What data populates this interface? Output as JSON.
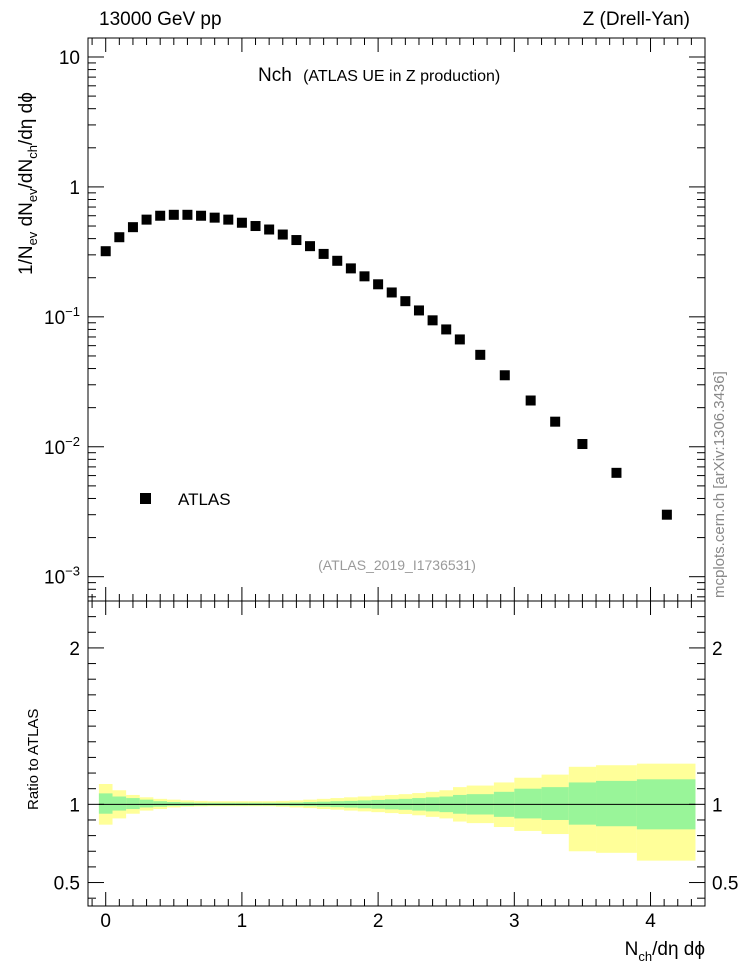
{
  "header": {
    "left": "13000 GeV pp",
    "right": "Z (Drell-Yan)"
  },
  "plot_title": {
    "main": "Nch",
    "sub": "(ATLAS UE in Z production)"
  },
  "analysis_id": "(ATLAS_2019_I1736531)",
  "side_label": "mcplots.cern.ch [arXiv:1306.3436]",
  "y_axis_label": {
    "base": "1/N",
    "sub1": "ev",
    "mid1": " dN",
    "sub2": "ev",
    "mid2": "/dN",
    "sub3": "ch",
    "tail": "/dη dϕ"
  },
  "x_axis_label": {
    "base": "N",
    "sub": "ch",
    "tail": "/dη dϕ"
  },
  "ratio_axis_label": "Ratio to ATLAS",
  "legend": {
    "entries": [
      "ATLAS"
    ]
  },
  "colors": {
    "band_inner": "#99f599",
    "band_outer": "#ffff99",
    "marker": "#000000"
  },
  "chart_data": [
    {
      "type": "scatter",
      "name": "main",
      "yscale": "log",
      "xlim": [
        -0.13,
        4.4
      ],
      "ylim": [
        0.00065,
        14
      ],
      "x_ticks": [
        "0",
        "1",
        "2",
        "3",
        "4"
      ],
      "y_ticks": [
        {
          "value": 10,
          "label": "10",
          "exp": ""
        },
        {
          "value": 1,
          "label": "1",
          "exp": ""
        },
        {
          "value": 0.1,
          "label": "10",
          "exp": "−1"
        },
        {
          "value": 0.01,
          "label": "10",
          "exp": "−2"
        },
        {
          "value": 0.001,
          "label": "10",
          "exp": "−3"
        }
      ],
      "series": [
        {
          "name": "ATLAS",
          "x": [
            0.0,
            0.1,
            0.2,
            0.3,
            0.4,
            0.5,
            0.6,
            0.7,
            0.8,
            0.9,
            1.0,
            1.1,
            1.2,
            1.3,
            1.4,
            1.5,
            1.6,
            1.7,
            1.8,
            1.9,
            2.0,
            2.1,
            2.2,
            2.3,
            2.4,
            2.5,
            2.6,
            2.75,
            2.93,
            3.12,
            3.3,
            3.5,
            3.75,
            4.12
          ],
          "y": [
            0.32,
            0.41,
            0.49,
            0.56,
            0.6,
            0.61,
            0.61,
            0.6,
            0.58,
            0.56,
            0.53,
            0.5,
            0.47,
            0.43,
            0.39,
            0.35,
            0.305,
            0.27,
            0.236,
            0.205,
            0.178,
            0.154,
            0.132,
            0.112,
            0.094,
            0.08,
            0.067,
            0.051,
            0.0355,
            0.0227,
            0.0156,
            0.0105,
            0.0063,
            0.003
          ]
        }
      ]
    },
    {
      "type": "area",
      "name": "ratio",
      "xlabel": "",
      "ylabel": "Ratio to ATLAS",
      "xlim": [
        -0.13,
        4.4
      ],
      "ylim": [
        0.35,
        2.3
      ],
      "y_ticks": [
        "0.5",
        "1",
        "2"
      ],
      "reference": 1,
      "bins": [
        {
          "lo": -0.05,
          "hi": 0.05,
          "inner": [
            0.94,
            1.07
          ],
          "outer": [
            0.87,
            1.13
          ]
        },
        {
          "lo": 0.05,
          "hi": 0.15,
          "inner": [
            0.96,
            1.05
          ],
          "outer": [
            0.91,
            1.09
          ]
        },
        {
          "lo": 0.15,
          "hi": 0.25,
          "inner": [
            0.97,
            1.04
          ],
          "outer": [
            0.94,
            1.06
          ]
        },
        {
          "lo": 0.25,
          "hi": 0.35,
          "inner": [
            0.98,
            1.03
          ],
          "outer": [
            0.96,
            1.045
          ]
        },
        {
          "lo": 0.35,
          "hi": 0.45,
          "inner": [
            0.985,
            1.02
          ],
          "outer": [
            0.97,
            1.035
          ]
        },
        {
          "lo": 0.45,
          "hi": 0.55,
          "inner": [
            0.99,
            1.015
          ],
          "outer": [
            0.98,
            1.03
          ]
        },
        {
          "lo": 0.55,
          "hi": 0.65,
          "inner": [
            0.99,
            1.012
          ],
          "outer": [
            0.985,
            1.025
          ]
        },
        {
          "lo": 0.65,
          "hi": 0.75,
          "inner": [
            0.992,
            1.01
          ],
          "outer": [
            0.987,
            1.022
          ]
        },
        {
          "lo": 0.75,
          "hi": 0.85,
          "inner": [
            0.993,
            1.01
          ],
          "outer": [
            0.988,
            1.02
          ]
        },
        {
          "lo": 0.85,
          "hi": 0.95,
          "inner": [
            0.993,
            1.01
          ],
          "outer": [
            0.988,
            1.02
          ]
        },
        {
          "lo": 0.95,
          "hi": 1.05,
          "inner": [
            0.993,
            1.01
          ],
          "outer": [
            0.988,
            1.02
          ]
        },
        {
          "lo": 1.05,
          "hi": 1.15,
          "inner": [
            0.993,
            1.01
          ],
          "outer": [
            0.988,
            1.02
          ]
        },
        {
          "lo": 1.15,
          "hi": 1.25,
          "inner": [
            0.993,
            1.01
          ],
          "outer": [
            0.988,
            1.02
          ]
        },
        {
          "lo": 1.25,
          "hi": 1.35,
          "inner": [
            0.992,
            1.01
          ],
          "outer": [
            0.985,
            1.022
          ]
        },
        {
          "lo": 1.35,
          "hi": 1.45,
          "inner": [
            0.99,
            1.012
          ],
          "outer": [
            0.98,
            1.025
          ]
        },
        {
          "lo": 1.45,
          "hi": 1.55,
          "inner": [
            0.988,
            1.015
          ],
          "outer": [
            0.976,
            1.03
          ]
        },
        {
          "lo": 1.55,
          "hi": 1.65,
          "inner": [
            0.985,
            1.017
          ],
          "outer": [
            0.97,
            1.035
          ]
        },
        {
          "lo": 1.65,
          "hi": 1.75,
          "inner": [
            0.982,
            1.02
          ],
          "outer": [
            0.966,
            1.04
          ]
        },
        {
          "lo": 1.75,
          "hi": 1.85,
          "inner": [
            0.979,
            1.022
          ],
          "outer": [
            0.96,
            1.045
          ]
        },
        {
          "lo": 1.85,
          "hi": 1.95,
          "inner": [
            0.975,
            1.025
          ],
          "outer": [
            0.955,
            1.05
          ]
        },
        {
          "lo": 1.95,
          "hi": 2.05,
          "inner": [
            0.972,
            1.028
          ],
          "outer": [
            0.95,
            1.055
          ]
        },
        {
          "lo": 2.05,
          "hi": 2.15,
          "inner": [
            0.968,
            1.032
          ],
          "outer": [
            0.944,
            1.06
          ]
        },
        {
          "lo": 2.15,
          "hi": 2.25,
          "inner": [
            0.965,
            1.035
          ],
          "outer": [
            0.938,
            1.065
          ]
        },
        {
          "lo": 2.25,
          "hi": 2.35,
          "inner": [
            0.96,
            1.04
          ],
          "outer": [
            0.93,
            1.072
          ]
        },
        {
          "lo": 2.35,
          "hi": 2.45,
          "inner": [
            0.955,
            1.045
          ],
          "outer": [
            0.92,
            1.08
          ]
        },
        {
          "lo": 2.45,
          "hi": 2.55,
          "inner": [
            0.95,
            1.05
          ],
          "outer": [
            0.91,
            1.09
          ]
        },
        {
          "lo": 2.55,
          "hi": 2.65,
          "inner": [
            0.94,
            1.06
          ],
          "outer": [
            0.89,
            1.11
          ]
        },
        {
          "lo": 2.65,
          "hi": 2.85,
          "inner": [
            0.935,
            1.065
          ],
          "outer": [
            0.88,
            1.12
          ]
        },
        {
          "lo": 2.85,
          "hi": 3.0,
          "inner": [
            0.92,
            1.08
          ],
          "outer": [
            0.855,
            1.14
          ]
        },
        {
          "lo": 3.0,
          "hi": 3.2,
          "inner": [
            0.91,
            1.1
          ],
          "outer": [
            0.83,
            1.17
          ]
        },
        {
          "lo": 3.2,
          "hi": 3.4,
          "inner": [
            0.9,
            1.11
          ],
          "outer": [
            0.81,
            1.19
          ]
        },
        {
          "lo": 3.4,
          "hi": 3.6,
          "inner": [
            0.87,
            1.14
          ],
          "outer": [
            0.7,
            1.24
          ]
        },
        {
          "lo": 3.6,
          "hi": 3.9,
          "inner": [
            0.86,
            1.15
          ],
          "outer": [
            0.69,
            1.25
          ]
        },
        {
          "lo": 3.9,
          "hi": 4.33,
          "inner": [
            0.84,
            1.16
          ],
          "outer": [
            0.64,
            1.26
          ]
        }
      ]
    }
  ]
}
